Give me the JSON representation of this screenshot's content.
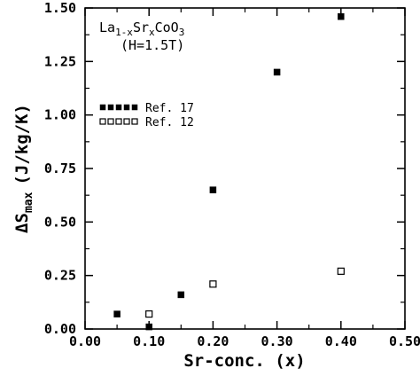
{
  "chart_data": {
    "type": "scatter",
    "xlabel": "Sr-conc. (x)",
    "ylabel": {
      "prefix": "ΔS",
      "subscript": "max",
      "units": "(J/kg/K)"
    },
    "xlim": [
      0.0,
      0.5
    ],
    "ylim": [
      0.0,
      1.5
    ],
    "x_ticks": [
      "0.00",
      "0.10",
      "0.20",
      "0.30",
      "0.40",
      "0.50"
    ],
    "y_ticks": [
      "0.00",
      "0.25",
      "0.50",
      "0.75",
      "1.00",
      "1.25",
      "1.50"
    ],
    "grid": false,
    "annotation": {
      "formula_parts": [
        {
          "text": "La",
          "sub": false
        },
        {
          "text": "1-x",
          "sub": true
        },
        {
          "text": "Sr",
          "sub": false
        },
        {
          "text": "x",
          "sub": true
        },
        {
          "text": "CoO",
          "sub": false
        },
        {
          "text": "3",
          "sub": true
        }
      ],
      "condition": "(H=1.5T)"
    },
    "legend_position": "upper-left",
    "series": [
      {
        "name": "Ref. 17",
        "marker": "filled-square",
        "x": [
          0.05,
          0.1,
          0.15,
          0.2,
          0.3,
          0.4
        ],
        "y": [
          0.07,
          0.01,
          0.16,
          0.65,
          1.2,
          1.46
        ]
      },
      {
        "name": "Ref. 12",
        "marker": "open-square",
        "x": [
          0.1,
          0.2,
          0.4
        ],
        "y": [
          0.07,
          0.21,
          0.27
        ]
      }
    ]
  }
}
